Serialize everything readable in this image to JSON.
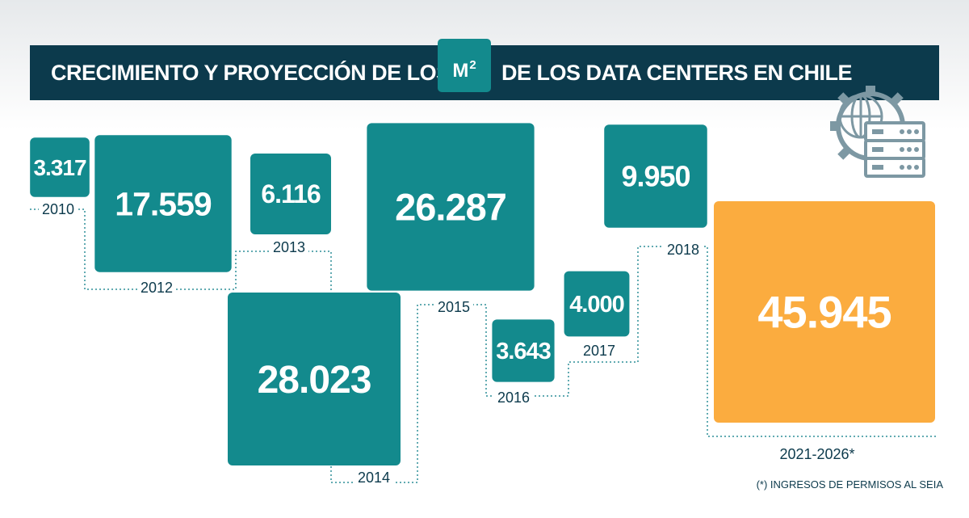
{
  "title": {
    "before": "CRECIMIENTO Y PROYECCIÓN DE LOS",
    "unit_badge": "M",
    "unit_superscript": "2",
    "after": "DE LOS DATA CENTERS EN CHILE"
  },
  "icon": "data-center-server-icon",
  "colors": {
    "header": "#0c3a4c",
    "historical": "#138a8d",
    "projection": "#fbac3f",
    "connector": "#2f8f99",
    "label": "#0c3a4c"
  },
  "chart_data": {
    "type": "bar",
    "categories": [
      "2010",
      "2012",
      "2013",
      "2014",
      "2015",
      "2016",
      "2017",
      "2018",
      "2021-2026*"
    ],
    "values": [
      3317,
      17559,
      6116,
      28023,
      26287,
      3643,
      4000,
      9950,
      45945
    ],
    "value_labels": [
      "3.317",
      "17.559",
      "6.116",
      "28.023",
      "26.287",
      "3.643",
      "4.000",
      "9.950",
      "45.945"
    ],
    "title": "CRECIMIENTO Y PROYECCIÓN DE LOS M2 DE LOS DATA CENTERS EN CHILE",
    "unit": "m2",
    "projection_category": "2021-2026*"
  },
  "footnote": "(*) INGRESOS DE PERMISOS AL SEIA"
}
